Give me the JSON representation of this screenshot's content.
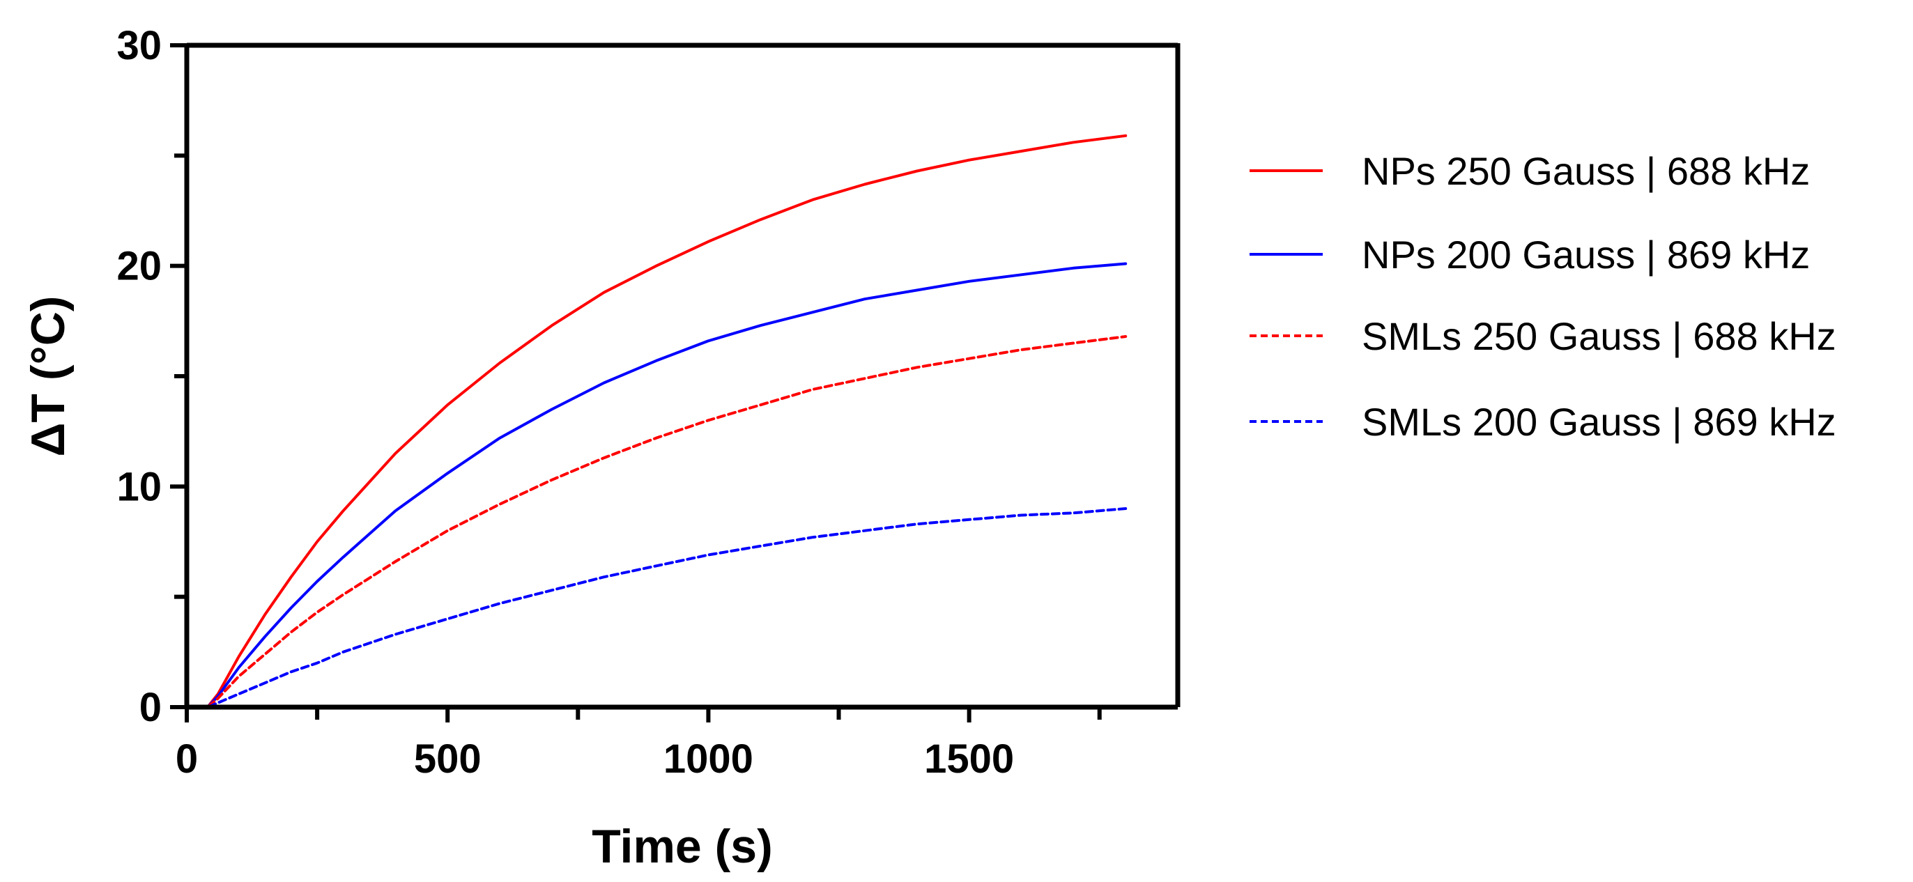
{
  "chart_data": {
    "type": "line",
    "title": "",
    "xlabel": "Time (s)",
    "ylabel": "ΔT (°C)",
    "xlim": [
      0,
      1900
    ],
    "ylim": [
      0,
      30
    ],
    "x_ticks": [
      0,
      500,
      1000,
      1500
    ],
    "x_minor_ticks": [
      250,
      750,
      1250,
      1750
    ],
    "y_ticks": [
      0,
      10,
      20,
      30
    ],
    "y_minor_ticks": [
      5,
      15,
      25
    ],
    "legend_position": "right",
    "x": [
      0,
      40,
      60,
      100,
      150,
      200,
      250,
      300,
      400,
      500,
      600,
      700,
      800,
      900,
      1000,
      1100,
      1200,
      1300,
      1400,
      1500,
      1600,
      1700,
      1800
    ],
    "series": [
      {
        "name": "NPs 250 Gauss | 688 kHz",
        "color": "#ff0000",
        "dash": "solid",
        "values": [
          0,
          0,
          0.6,
          2.3,
          4.2,
          5.9,
          7.5,
          8.9,
          11.5,
          13.7,
          15.6,
          17.3,
          18.8,
          20.0,
          21.1,
          22.1,
          23.0,
          23.7,
          24.3,
          24.8,
          25.2,
          25.6,
          25.9
        ]
      },
      {
        "name": "NPs 200 Gauss | 869 kHz",
        "color": "#0000ff",
        "dash": "solid",
        "values": [
          0,
          0,
          0.5,
          1.8,
          3.2,
          4.5,
          5.7,
          6.8,
          8.9,
          10.6,
          12.2,
          13.5,
          14.7,
          15.7,
          16.6,
          17.3,
          17.9,
          18.5,
          18.9,
          19.3,
          19.6,
          19.9,
          20.1
        ]
      },
      {
        "name": "SMLs 250 Gauss | 688 kHz",
        "color": "#ff0000",
        "dash": "dashed",
        "values": [
          0,
          0,
          0.4,
          1.4,
          2.4,
          3.4,
          4.3,
          5.1,
          6.6,
          8.0,
          9.2,
          10.3,
          11.3,
          12.2,
          13.0,
          13.7,
          14.4,
          14.9,
          15.4,
          15.8,
          16.2,
          16.5,
          16.8
        ]
      },
      {
        "name": "SMLs 200 Gauss | 869 kHz",
        "color": "#0000ff",
        "dash": "dashed",
        "values": [
          0,
          0,
          0.2,
          0.6,
          1.1,
          1.6,
          2.0,
          2.5,
          3.3,
          4.0,
          4.7,
          5.3,
          5.9,
          6.4,
          6.9,
          7.3,
          7.7,
          8.0,
          8.3,
          8.5,
          8.7,
          8.8,
          9.0
        ]
      }
    ]
  }
}
